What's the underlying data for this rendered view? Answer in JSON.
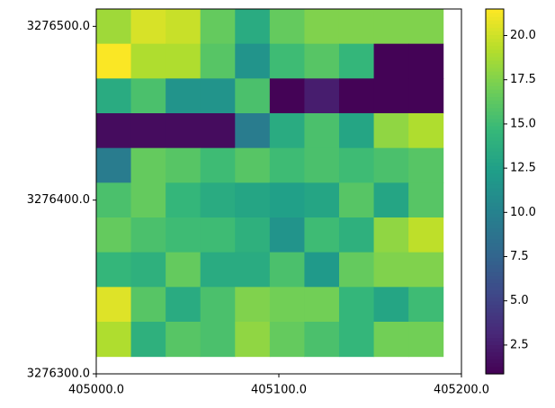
{
  "chart_data": {
    "type": "heatmap",
    "colormap": "viridis",
    "x_edges": [
      405000,
      405019,
      405038,
      405057,
      405076,
      405095,
      405114,
      405133,
      405152,
      405171,
      405190
    ],
    "y_edges": [
      3276510,
      3276490,
      3276470,
      3276450,
      3276430,
      3276410,
      3276390,
      3276370,
      3276350,
      3276330,
      3276310
    ],
    "values": [
      [
        18.5,
        20.3,
        19.8,
        16.5,
        13.5,
        16.5,
        17.5,
        17.5,
        17.5,
        17.5
      ],
      [
        21.4,
        19,
        19,
        16,
        11.5,
        15,
        16,
        14.5,
        1,
        1
      ],
      [
        13.5,
        15.5,
        11.5,
        11.5,
        15.5,
        1,
        2.5,
        1,
        1,
        1
      ],
      [
        1.5,
        1.5,
        1.5,
        1.5,
        9.5,
        13.5,
        15.5,
        13,
        18,
        19
      ],
      [
        9.5,
        16.5,
        16,
        15,
        16,
        15,
        15.5,
        15,
        15.5,
        16
      ],
      [
        15.5,
        16.5,
        14.5,
        13.5,
        13,
        12.5,
        13,
        16,
        13,
        16
      ],
      [
        16.5,
        15.5,
        15,
        15,
        14,
        11.5,
        15,
        14,
        18,
        19.5
      ],
      [
        14.5,
        14,
        16.5,
        13.5,
        13.5,
        15.5,
        12,
        16.5,
        17.5,
        17.5
      ],
      [
        20.5,
        16,
        13.5,
        15.5,
        17.5,
        17,
        17,
        14.5,
        13,
        15
      ],
      [
        19,
        14,
        16,
        15.5,
        18,
        16.5,
        15.5,
        14.5,
        17,
        17
      ]
    ],
    "xlim": [
      405000,
      405200
    ],
    "ylim": [
      3276300,
      3276510
    ],
    "xticks": [
      {
        "value": 405000,
        "label": "405000.0"
      },
      {
        "value": 405100,
        "label": "405100.0"
      },
      {
        "value": 405200,
        "label": "405200.0"
      }
    ],
    "yticks": [
      {
        "value": 3276300,
        "label": "3276300.0"
      },
      {
        "value": 3276400,
        "label": "3276400.0"
      },
      {
        "value": 3276500,
        "label": "3276500.0"
      }
    ],
    "clim": [
      0.87,
      21.5
    ],
    "cticks": [
      2.5,
      {
        "value": 5,
        "label": "5.0"
      },
      7.5,
      {
        "value": 10,
        "label": "10.0"
      },
      12.5,
      {
        "value": 15,
        "label": "15.0"
      },
      17.5,
      {
        "value": 20,
        "label": "20.0"
      }
    ]
  }
}
